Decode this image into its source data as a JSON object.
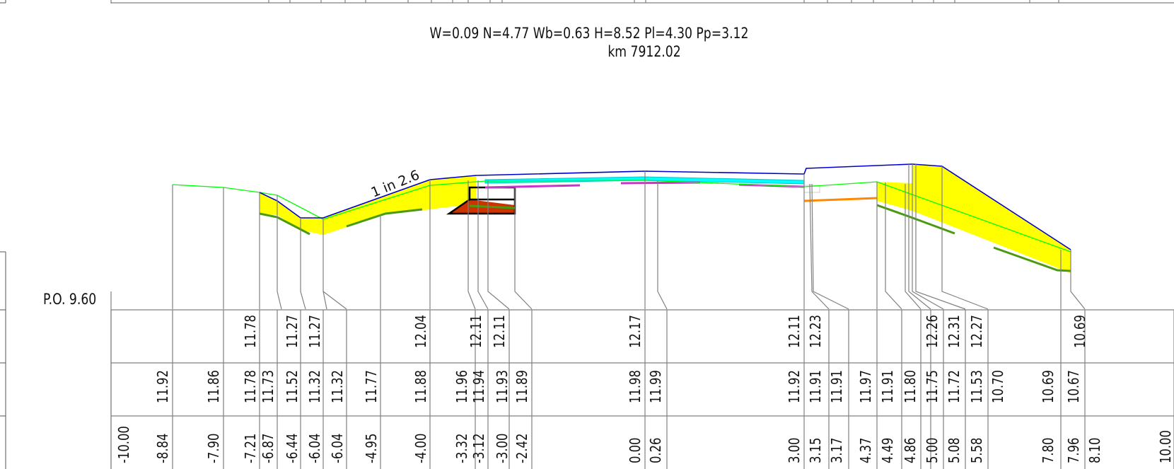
{
  "header": {
    "params": "W=0.09 N=4.77 Wb=0.63 H=8.52 Pl=4.30 Pp=3.12",
    "km": "km 7912.02"
  },
  "slope_label": "1 in 2.6",
  "datum_label": "P.O. 9.60",
  "colors": {
    "design_line": "#0000cc",
    "ground_line": "#00ff00",
    "fill_area": "#ffff00",
    "subgrade_line": "#4a9a10",
    "pavement": "#00ffff",
    "pavement_base": "#cc33cc",
    "structure_fill": "#cc3300",
    "curb_line": "#ff8800",
    "grid": "#808080"
  },
  "table": {
    "row1_values": [
      "11.78",
      "11.27",
      "11.27",
      "12.04",
      "12.11",
      "12.11",
      "12.17",
      "12.11",
      "12.23",
      "12.26",
      "12.31",
      "12.27",
      "10.69"
    ],
    "row2_values": [
      "11.92",
      "11.86",
      "11.78",
      "11.73",
      "11.52",
      "11.32",
      "11.32",
      "11.77",
      "11.88",
      "11.96",
      "11.94",
      "11.93",
      "11.89",
      "11.98",
      "11.99",
      "11.92",
      "11.91",
      "11.91",
      "11.97",
      "11.91",
      "11.80",
      "11.75",
      "11.72",
      "11.53",
      "10.70",
      "10.69",
      "10.67"
    ],
    "offsets": [
      "-10.00",
      "-8.84",
      "-7.90",
      "-7.21",
      "-6.87",
      "-6.44",
      "-6.04",
      "-6.04",
      "-4.95",
      "-4.00",
      "-3.32",
      "-3.12",
      "-3.00",
      "-2.42",
      "0.00",
      "0.26",
      "3.00",
      "3.15",
      "3.17",
      "4.37",
      "4.49",
      "4.86",
      "5.00",
      "5.08",
      "5.58",
      "7.80",
      "7.96",
      "8.10",
      "10.00"
    ]
  }
}
